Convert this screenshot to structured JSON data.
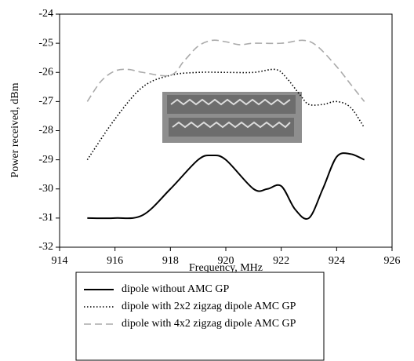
{
  "chart_data": {
    "type": "line",
    "x_label": "Frequency, MHz",
    "y_label": "Power received, dBm",
    "xlim": [
      914,
      926
    ],
    "xticks": [
      914,
      916,
      918,
      920,
      922,
      924,
      926
    ],
    "ylim": [
      -32,
      -24
    ],
    "yticks": [
      -32,
      -31,
      -30,
      -29,
      -28,
      -27,
      -26,
      -25,
      -24
    ],
    "series": [
      {
        "name": "dipole without AMC GP",
        "color": "#000000",
        "dash": "solid",
        "x": [
          915,
          916,
          917,
          918,
          919,
          919.5,
          920,
          921,
          921.5,
          922,
          922.5,
          923,
          923.5,
          924,
          924.5,
          925
        ],
        "values": [
          -31,
          -31,
          -30.9,
          -30,
          -29,
          -28.85,
          -29,
          -30,
          -30,
          -29.9,
          -30.7,
          -31,
          -30,
          -28.9,
          -28.8,
          -29
        ]
      },
      {
        "name": "dipole with 2x2 zigzag dipole AMC GP",
        "color": "#000000",
        "dash": "dotted",
        "x": [
          915,
          916,
          917,
          918,
          919,
          920,
          921,
          921.8,
          922.2,
          922.7,
          923,
          923.5,
          924,
          924.5,
          925
        ],
        "values": [
          -29,
          -27.6,
          -26.5,
          -26.1,
          -26,
          -26,
          -26,
          -25.9,
          -26.2,
          -26.8,
          -27.1,
          -27.1,
          -27,
          -27.2,
          -27.9
        ]
      },
      {
        "name": "dipole with 4x2 zigzag dipole AMC GP",
        "color": "#aaaaaa",
        "dash": "dashed",
        "x": [
          915,
          915.5,
          916,
          916.5,
          917,
          918,
          918.5,
          919,
          919.5,
          920,
          920.5,
          921,
          922,
          922.8,
          923.3,
          924,
          924.5,
          925
        ],
        "values": [
          -27,
          -26.3,
          -25.95,
          -25.9,
          -26,
          -26.1,
          -25.6,
          -25.1,
          -24.9,
          -24.95,
          -25.05,
          -25,
          -25,
          -24.9,
          -25.1,
          -25.8,
          -26.4,
          -27
        ]
      }
    ]
  }
}
